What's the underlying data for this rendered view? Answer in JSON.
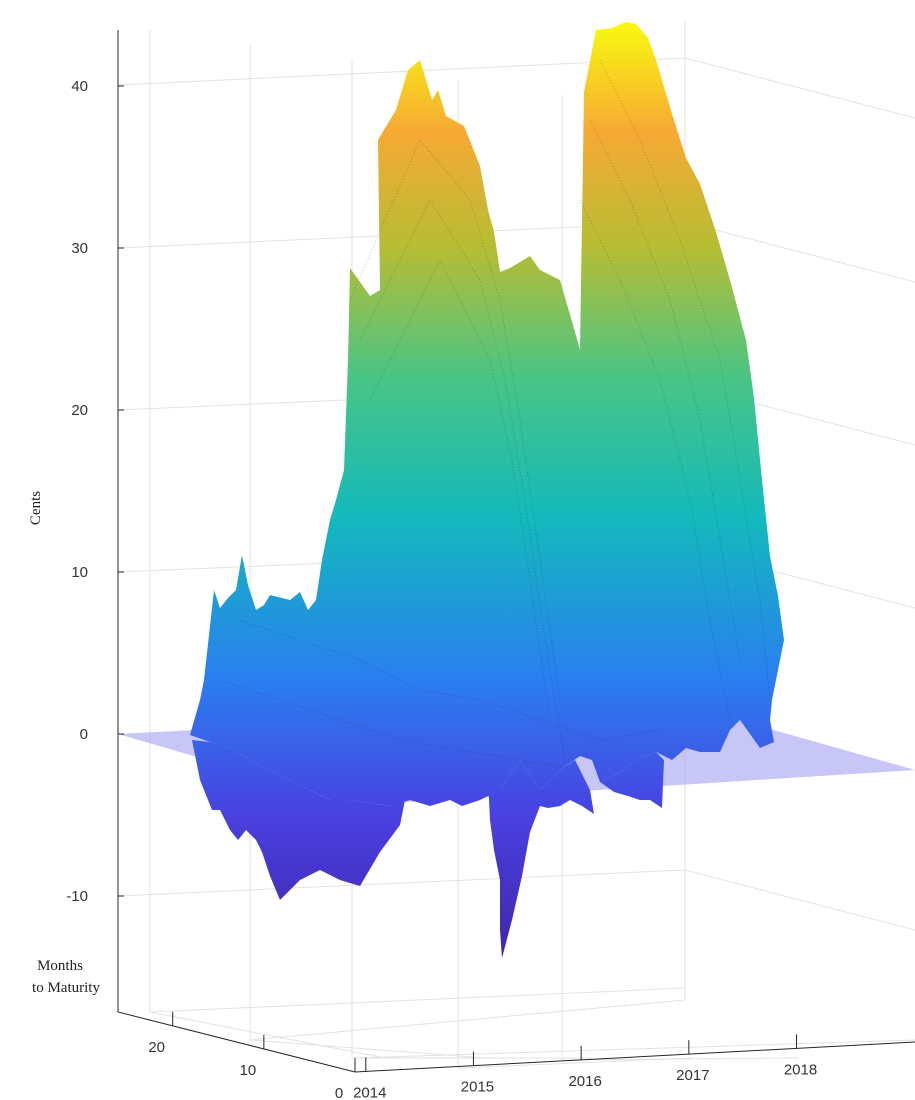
{
  "chart_data": {
    "type": "surface3d",
    "title": "",
    "zlabel": "Cents",
    "ylabel_lines": [
      "Months",
      "to Maturity"
    ],
    "xlabel": "",
    "z_ticks": [
      40,
      30,
      20,
      10,
      0,
      -10
    ],
    "y_ticks": [
      20,
      10,
      0
    ],
    "x_ticks": [
      2014,
      2015,
      2016,
      2017,
      2018
    ],
    "zlim": [
      -15,
      45
    ],
    "ylim": [
      0,
      26
    ],
    "xlim": [
      2013.9,
      2019.1
    ],
    "grid": true,
    "zero_plane": true,
    "colormap": "parula",
    "surface_peaks": [
      {
        "x": 2014.4,
        "value": 41
      },
      {
        "x": 2015.0,
        "value": 28
      },
      {
        "x": 2015.6,
        "value": 43
      }
    ],
    "surface_troughs": [
      {
        "x": 2014.3,
        "value": -10
      },
      {
        "x": 2015.2,
        "value": -14
      },
      {
        "x": 2016.1,
        "value": -6
      }
    ]
  },
  "colors": {
    "zero_plane": "#a9a8f2",
    "grid": "#e2e2e2",
    "axis": "#262626",
    "colormap_low": "#3e26a8",
    "colormap_mid": "#13b9bc",
    "colormap_high": "#f9fb0e"
  }
}
